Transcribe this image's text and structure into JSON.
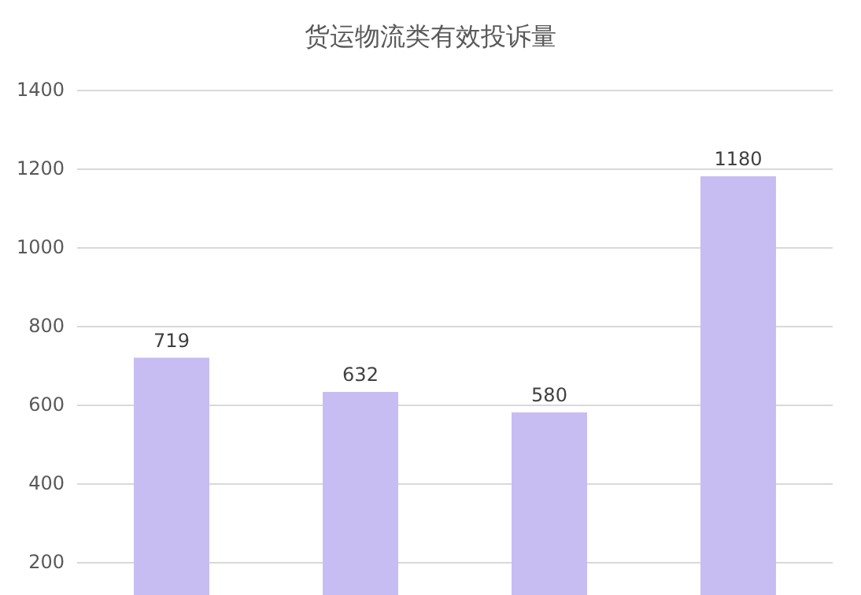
{
  "chart_data": {
    "type": "bar",
    "title": "货运物流类有效投诉量",
    "categories": [
      null,
      null,
      null,
      null
    ],
    "series": [
      {
        "color": "#c8bdf3",
        "values": [
          719,
          632,
          580,
          1180
        ]
      }
    ],
    "ylim": [
      116,
      1400
    ],
    "yticks": [
      200,
      400,
      600,
      800,
      1000,
      1200,
      1400
    ],
    "grid": "y",
    "data_labels": true,
    "tick_labels": "y"
  }
}
